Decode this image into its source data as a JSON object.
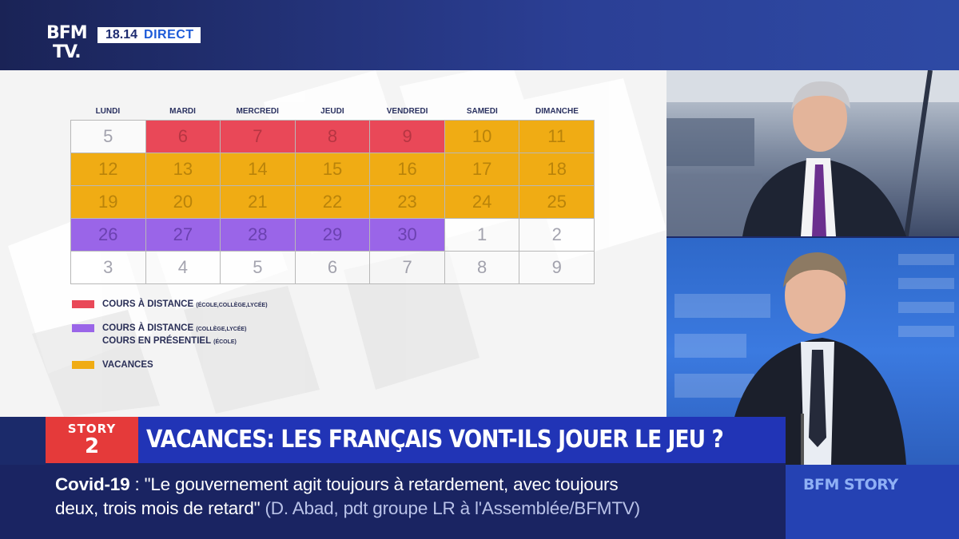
{
  "header": {
    "logo_line1": "BFM",
    "logo_line2": "TV.",
    "time": "18.14",
    "live_label": "DIRECT"
  },
  "calendar": {
    "days": [
      "LUNDI",
      "MARDI",
      "MERCREDI",
      "JEUDI",
      "VENDREDI",
      "SAMEDI",
      "DIMANCHE"
    ],
    "weeks": [
      [
        {
          "d": "5",
          "s": "wht"
        },
        {
          "d": "6",
          "s": "red"
        },
        {
          "d": "7",
          "s": "red"
        },
        {
          "d": "8",
          "s": "red"
        },
        {
          "d": "9",
          "s": "red"
        },
        {
          "d": "10",
          "s": "org"
        },
        {
          "d": "11",
          "s": "org"
        }
      ],
      [
        {
          "d": "12",
          "s": "org"
        },
        {
          "d": "13",
          "s": "org"
        },
        {
          "d": "14",
          "s": "org"
        },
        {
          "d": "15",
          "s": "org"
        },
        {
          "d": "16",
          "s": "org"
        },
        {
          "d": "17",
          "s": "org"
        },
        {
          "d": "18",
          "s": "org"
        }
      ],
      [
        {
          "d": "19",
          "s": "org"
        },
        {
          "d": "20",
          "s": "org"
        },
        {
          "d": "21",
          "s": "org"
        },
        {
          "d": "22",
          "s": "org"
        },
        {
          "d": "23",
          "s": "org"
        },
        {
          "d": "24",
          "s": "org"
        },
        {
          "d": "25",
          "s": "org"
        }
      ],
      [
        {
          "d": "26",
          "s": "pur"
        },
        {
          "d": "27",
          "s": "pur"
        },
        {
          "d": "28",
          "s": "pur"
        },
        {
          "d": "29",
          "s": "pur"
        },
        {
          "d": "30",
          "s": "pur"
        },
        {
          "d": "1",
          "s": "wht"
        },
        {
          "d": "2",
          "s": "wht"
        }
      ],
      [
        {
          "d": "3",
          "s": "wht"
        },
        {
          "d": "4",
          "s": "wht"
        },
        {
          "d": "5",
          "s": "wht"
        },
        {
          "d": "6",
          "s": "wht"
        },
        {
          "d": "7",
          "s": "wht"
        },
        {
          "d": "8",
          "s": "wht"
        },
        {
          "d": "9",
          "s": "wht"
        }
      ]
    ],
    "legend": {
      "red_main": "COURS À DISTANCE",
      "red_note": "(ÉCOLE,COLLÈGE,LYCÉE)",
      "purple_main1": "COURS À DISTANCE",
      "purple_note1": "(COLLÈGE,LYCÉE)",
      "purple_main2": "COURS EN PRÉSENTIEL",
      "purple_note2": "(ÉCOLE)",
      "orange_main": "VACANCES"
    },
    "colors": {
      "red": "#e94858",
      "purple": "#9a65e8",
      "orange": "#f0ac14"
    }
  },
  "story": {
    "badge_label": "STORY",
    "badge_number": "2",
    "title": "VACANCES: LES FRANÇAIS VONT-ILS JOUER LE JEU ?"
  },
  "ticker": {
    "keyword": "Covid-19",
    "separator": " : ",
    "quote_part1": "\"Le gouvernement agit toujours à retardement, avec toujours",
    "quote_part2": "deux, trois mois de retard\"",
    "source": "(D. Abad, pdt groupe LR à l'Assemblée/BFMTV)"
  },
  "brand": {
    "label": "BFM STORY"
  }
}
